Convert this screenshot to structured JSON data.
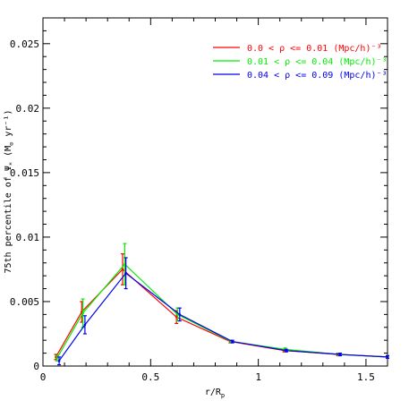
{
  "chart_data": {
    "type": "line",
    "xlabel": "r/R",
    "xlabel_sub": "p",
    "ylabel": "75th percentile of Ψ",
    "ylabel_sub": "*",
    "ylabel_units": "(M",
    "ylabel_units_sub": "⊙",
    "ylabel_units_end": " yr⁻¹)",
    "xlim": [
      0,
      1.6
    ],
    "ylim": [
      0,
      0.027
    ],
    "xticks": [
      0,
      0.5,
      1,
      1.5
    ],
    "xtick_labels": [
      "0",
      "0.5",
      "1",
      "1.5"
    ],
    "yticks": [
      0,
      0.005,
      0.01,
      0.015,
      0.02,
      0.025
    ],
    "ytick_labels": [
      "0",
      "0.005",
      "0.01",
      "0.015",
      "0.02",
      "0.025"
    ],
    "grid": false,
    "legend_position": "top-right",
    "series": [
      {
        "name": "0.0 < ρ <= 0.01 (Mpc/h)⁻³",
        "color": "#ff0000",
        "x": [
          0.06,
          0.18,
          0.37,
          0.62,
          0.87,
          1.12,
          1.37,
          1.6
        ],
        "y": [
          0.0007,
          0.0042,
          0.0075,
          0.0038,
          0.0019,
          0.0012,
          0.0009,
          0.0007
        ],
        "err": [
          0.0002,
          0.0008,
          0.0012,
          0.0005,
          0.0001,
          0.0001,
          0.0001,
          0.0001
        ]
      },
      {
        "name": "0.01 < ρ <= 0.04 (Mpc/h)⁻³",
        "color": "#00ee00",
        "x": [
          0.065,
          0.185,
          0.38,
          0.625,
          0.875,
          1.125,
          1.375,
          1.6
        ],
        "y": [
          0.0006,
          0.0041,
          0.0079,
          0.004,
          0.0019,
          0.0013,
          0.0009,
          0.0007
        ],
        "err": [
          0.0002,
          0.0011,
          0.0016,
          0.0005,
          0.0001,
          0.0001,
          0.0001,
          0.0001
        ]
      },
      {
        "name": "0.04 < ρ <= 0.09 (Mpc/h)⁻³",
        "color": "#0000ee",
        "x": [
          0.075,
          0.195,
          0.385,
          0.635,
          0.88,
          1.13,
          1.38,
          1.6
        ],
        "y": [
          0.0004,
          0.0032,
          0.0072,
          0.004,
          0.0019,
          0.0012,
          0.0009,
          0.0007
        ],
        "err": [
          0.0003,
          0.0007,
          0.0012,
          0.0005,
          0.0001,
          0.0001,
          0.0001,
          0.0001
        ]
      }
    ]
  }
}
